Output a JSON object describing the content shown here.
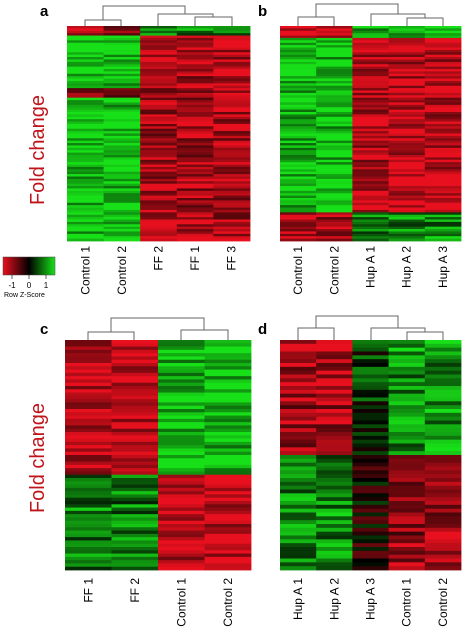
{
  "colors": {
    "low": "#e8101e",
    "mid": "#000000",
    "high": "#18e018",
    "text_red": "#c0141b"
  },
  "y_axis_title": "Fold change",
  "legend": {
    "title": "Row Z-Score",
    "ticks": [
      "-1",
      "0",
      "1"
    ]
  },
  "chart_data": [
    {
      "type": "heatmap",
      "panel": "a",
      "columns": [
        "Control 1",
        "Control 2",
        "FF 2",
        "FF 1",
        "FF 3"
      ],
      "scale": "Row Z-Score",
      "range": [
        -1,
        1
      ]
    },
    {
      "type": "heatmap",
      "panel": "b",
      "columns": [
        "Control 1",
        "Control 2",
        "Hup A 1",
        "Hup A 2",
        "Hup A 3"
      ],
      "scale": "Row Z-Score",
      "range": [
        -1,
        1
      ]
    },
    {
      "type": "heatmap",
      "panel": "c",
      "columns": [
        "FF 1",
        "FF 2",
        "Control 1",
        "Control 2"
      ],
      "scale": "Row Z-Score",
      "range": [
        -1,
        1
      ]
    },
    {
      "type": "heatmap",
      "panel": "d",
      "columns": [
        "Hup A 1",
        "Hup A 2",
        "Hup A 3",
        "Control 1",
        "Control 2"
      ],
      "scale": "Row Z-Score",
      "range": [
        -1,
        1
      ]
    }
  ]
}
